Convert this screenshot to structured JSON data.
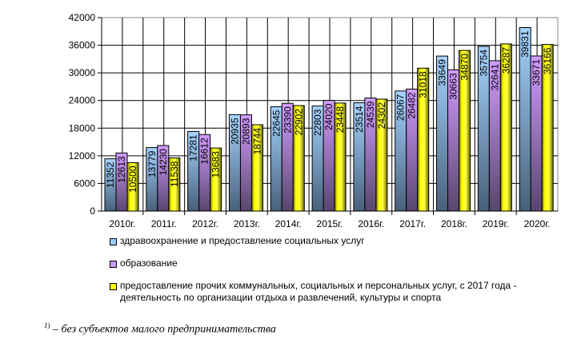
{
  "chart_data": {
    "type": "bar",
    "title": "",
    "xlabel": "",
    "ylabel": "",
    "ylim": [
      0,
      42000
    ],
    "yticks": [
      0,
      6000,
      12000,
      18000,
      24000,
      30000,
      36000,
      42000
    ],
    "grid": true,
    "legend_position": "bottom",
    "categories": [
      "2010г.",
      "2011г.",
      "2012г.",
      "2013г.",
      "2014г.",
      "2015г.",
      "2016г.",
      "2017г.",
      "2018г.",
      "2019г.",
      "2020г."
    ],
    "series": [
      {
        "name": "здравоохранение и предоставление социальных услуг",
        "color": "#99ccff",
        "values": [
          11352,
          13779,
          17281,
          20935,
          22645,
          22803,
          23514,
          26067,
          33649,
          35754,
          39831
        ]
      },
      {
        "name": "образование",
        "color": "#cc99ff",
        "values": [
          12613,
          14230,
          16612,
          20893,
          23390,
          24020,
          24539,
          26482,
          30663,
          32641,
          33671
        ]
      },
      {
        "name": "предоставление прочих коммунальных, социальных и персональных услуг, с 2017 года - деятельность по организации отдыха и развлечений, культуры и спорта",
        "color": "#ffff00",
        "values": [
          10500,
          11538,
          13683,
          18744,
          22902,
          23448,
          24302,
          31018,
          34870,
          36287,
          36166
        ]
      }
    ]
  },
  "footnote": {
    "mark": "1)",
    "text": " – без субъектов малого предпринимательства"
  }
}
